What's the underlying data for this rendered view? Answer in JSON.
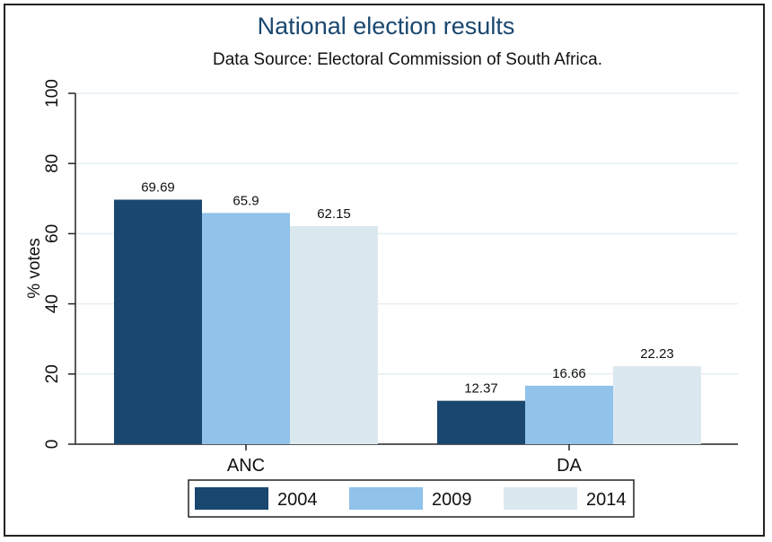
{
  "chart_data": {
    "type": "bar",
    "title": "National election results",
    "subtitle": "Data Source: Electoral Commission of South Africa.",
    "categories": [
      "ANC",
      "DA"
    ],
    "series": [
      {
        "name": "2004",
        "values": [
          69.69,
          12.37
        ],
        "labels": [
          "69.69",
          "12.37"
        ],
        "color": "#1a476f"
      },
      {
        "name": "2009",
        "values": [
          65.9,
          16.66
        ],
        "labels": [
          "65.9",
          "16.66"
        ],
        "color": "#90c2ea"
      },
      {
        "name": "2014",
        "values": [
          62.15,
          22.23
        ],
        "labels": [
          "62.15",
          "22.23"
        ],
        "color": "#dce8ef"
      }
    ],
    "xlabel": "",
    "ylabel": "% votes",
    "ylim": [
      0,
      100
    ],
    "yticks": [
      0,
      20,
      40,
      60,
      80,
      100
    ],
    "ytick_labels": [
      "0",
      "20",
      "40",
      "60",
      "80",
      "100"
    ],
    "grid": true,
    "legend_position": "bottom"
  },
  "colors": {
    "title": "#1a476f",
    "grid": "#e4eef3",
    "axis": "#222222"
  }
}
